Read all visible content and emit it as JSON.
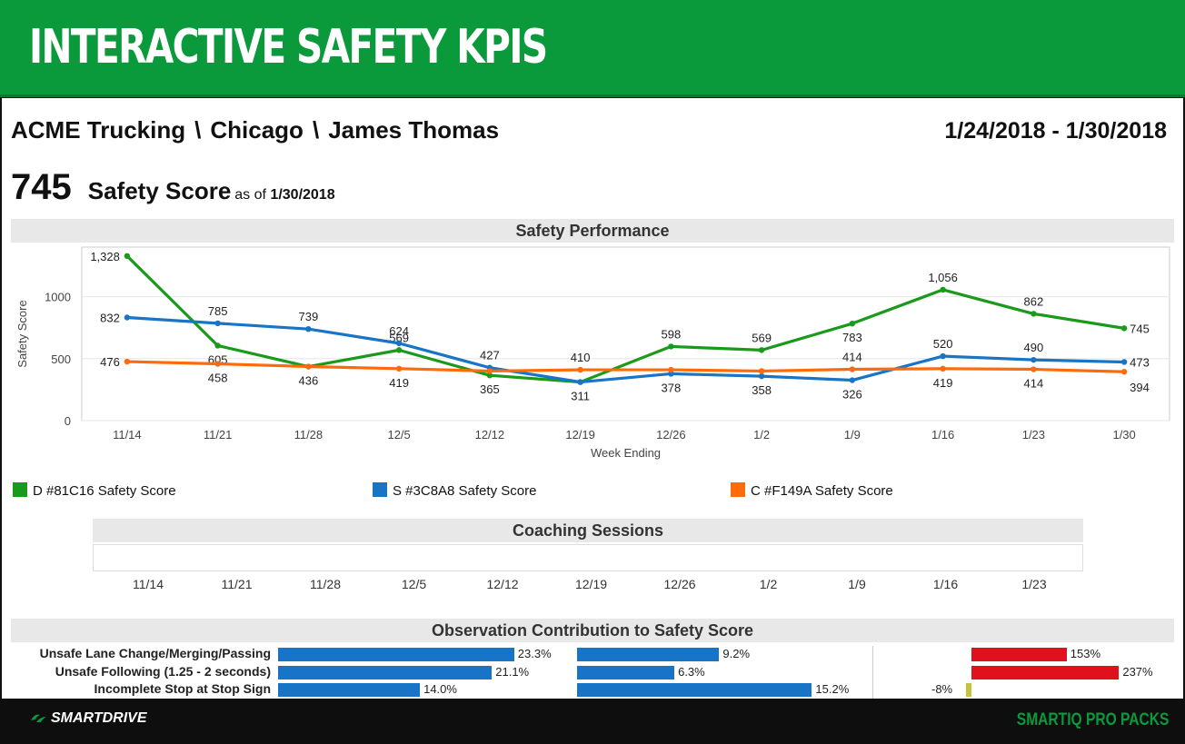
{
  "banner": {
    "title": "INTERACTIVE SAFETY KPIS"
  },
  "breadcrumb": {
    "company": "ACME Trucking",
    "location": "Chicago",
    "driver": "James Thomas",
    "separator": "\\"
  },
  "date_range": "1/24/2018 - 1/30/2018",
  "score": {
    "value": "745",
    "label": "Safety Score",
    "as_of_prefix": "as of",
    "as_of_date": "1/30/2018"
  },
  "sections": {
    "performance": "Safety Performance",
    "coaching": "Coaching Sessions",
    "observation": "Observation Contribution to Safety Score"
  },
  "colors": {
    "green": "#1a9a1a",
    "blue": "#1874c6",
    "orange": "#ff6a0a"
  },
  "chart_data": {
    "type": "line",
    "title": "Safety Performance",
    "xlabel": "Week Ending",
    "ylabel": "Safety Score",
    "categories": [
      "11/14",
      "11/21",
      "11/28",
      "12/5",
      "12/12",
      "12/19",
      "12/26",
      "1/2",
      "1/9",
      "1/16",
      "1/23",
      "1/30"
    ],
    "yticks": [
      "0",
      "500",
      "1000"
    ],
    "ylim": [
      0,
      1400
    ],
    "series": [
      {
        "name": "D #81C16 Safety Score",
        "color": "#1a9a1a",
        "values": [
          1328,
          605,
          436,
          569,
          365,
          311,
          598,
          569,
          783,
          1056,
          862,
          745
        ],
        "labels": [
          "1,328",
          "605",
          "436",
          "569",
          "365",
          "311",
          "598",
          "569",
          "783",
          "1,056",
          "862",
          "745"
        ]
      },
      {
        "name": "S #3C8A8 Safety Score",
        "color": "#1874c6",
        "values": [
          832,
          785,
          739,
          624,
          427,
          311,
          378,
          358,
          326,
          520,
          490,
          473
        ],
        "labels": [
          "832",
          "785",
          "739",
          "624",
          "427",
          "",
          "378",
          "358",
          "326",
          "520",
          "490",
          "473"
        ]
      },
      {
        "name": "C #F149A Safety Score",
        "color": "#ff6a0a",
        "values": [
          476,
          458,
          436,
          419,
          400,
          410,
          410,
          400,
          414,
          419,
          414,
          394
        ],
        "labels": [
          "476",
          "458",
          "",
          "419",
          "",
          "410",
          "",
          "",
          "414",
          "419",
          "414",
          "394"
        ]
      }
    ],
    "legend": "bottom"
  },
  "coaching": {
    "ticks": [
      "11/14",
      "11/21",
      "11/28",
      "12/5",
      "12/12",
      "12/19",
      "12/26",
      "1/2",
      "1/9",
      "1/16",
      "1/23"
    ]
  },
  "observations": [
    {
      "label": "Unsafe Lane Change/Merging/Passing",
      "a": 23.3,
      "a_text": "23.3%",
      "b": 9.2,
      "b_text": "9.2%",
      "c": 153,
      "c_text": "153%"
    },
    {
      "label": "Unsafe Following (1.25 - 2 seconds)",
      "a": 21.1,
      "a_text": "21.1%",
      "b": 6.3,
      "b_text": "6.3%",
      "c": 237,
      "c_text": "237%"
    },
    {
      "label": "Incomplete Stop at Stop Sign",
      "a": 14.0,
      "a_text": "14.0%",
      "b": 15.2,
      "b_text": "15.2%",
      "c": -8,
      "c_text": "-8%"
    }
  ],
  "footer": {
    "logo": "SMARTDRIVE",
    "tagline": "SMARTIQ PRO PACKS"
  }
}
